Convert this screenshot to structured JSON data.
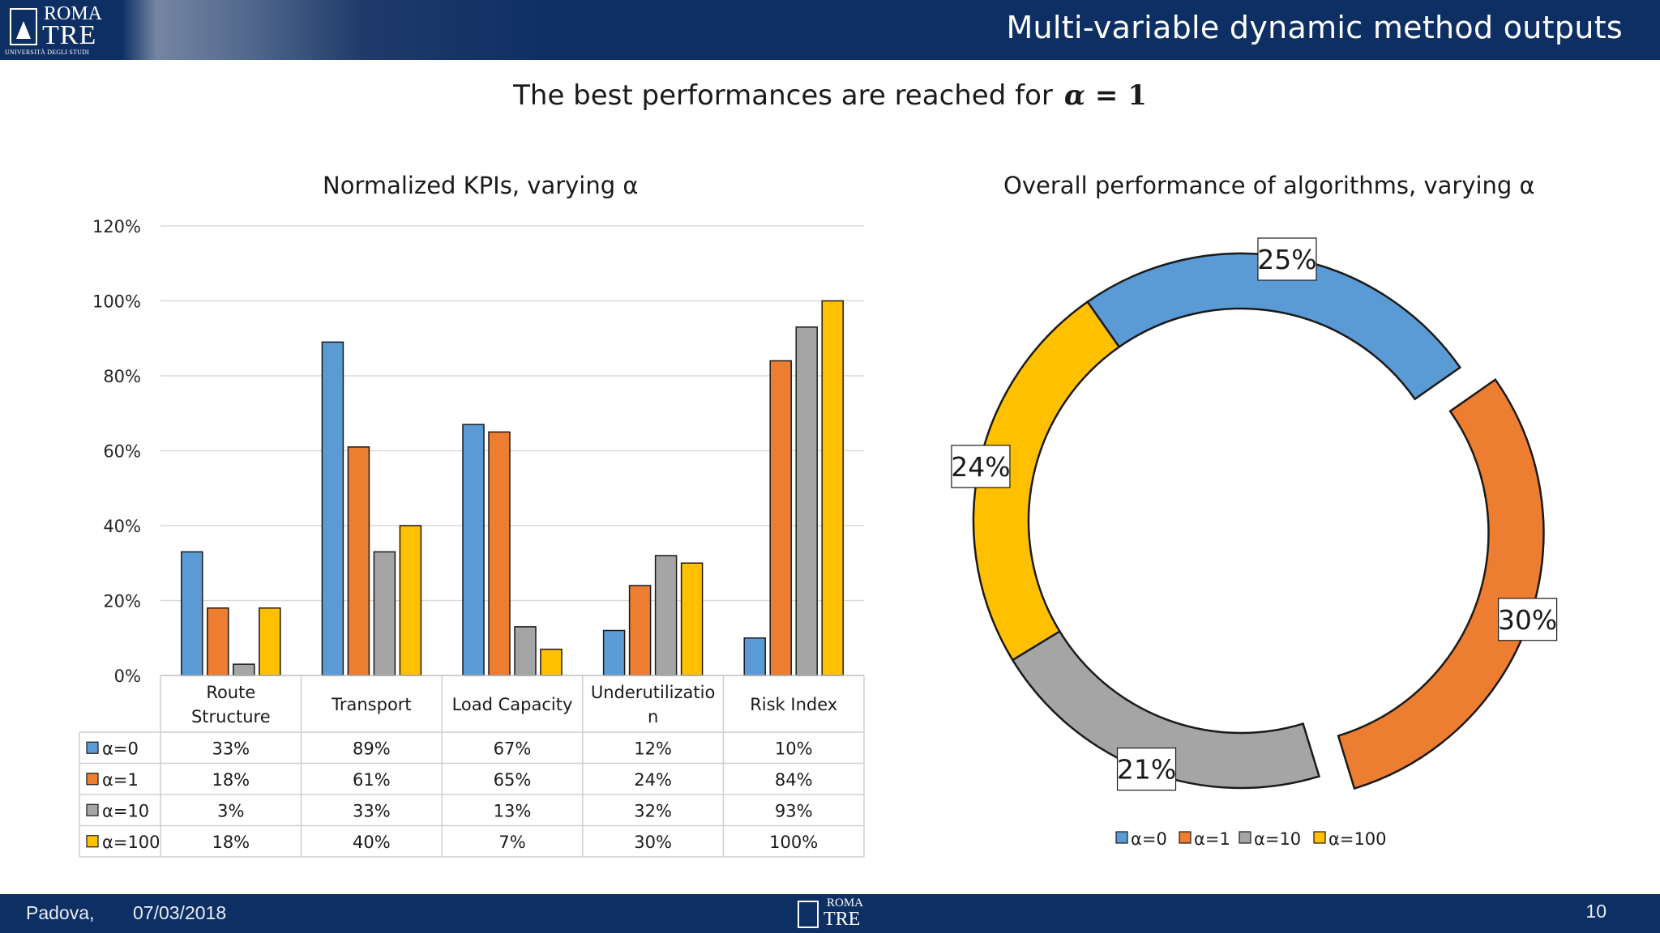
{
  "header": {
    "title": "Multi-variable dynamic method outputs",
    "logo_top": "ROMA",
    "logo_main": "TRE",
    "logo_sub": "UNIVERSITÀ DEGLI STUDI"
  },
  "subtitle": {
    "text": "The best performances are reached for",
    "math_alpha": "α",
    "math_eq": " = 1"
  },
  "colors": {
    "alpha0": "#5b9bd5",
    "alpha1": "#ed7d31",
    "alpha10": "#a5a5a5",
    "alpha100": "#ffc000",
    "header_bg": "#0e2f63"
  },
  "chart_data": [
    {
      "type": "bar",
      "title": "Normalized KPIs, varying α",
      "categories": [
        "Route Structure",
        "Transport",
        "Load Capacity",
        "Underutilization",
        "Risk Index"
      ],
      "category_lines": [
        [
          "Route",
          "Structure"
        ],
        [
          "Transport"
        ],
        [
          "Load Capacity"
        ],
        [
          "Underutilizatio",
          "n"
        ],
        [
          "Risk Index"
        ]
      ],
      "series": [
        {
          "name": "α=0",
          "values": [
            33,
            89,
            67,
            12,
            10
          ],
          "labels": [
            "33%",
            "89%",
            "67%",
            "12%",
            "10%"
          ],
          "color": "#5b9bd5"
        },
        {
          "name": "α=1",
          "values": [
            18,
            61,
            65,
            24,
            84
          ],
          "labels": [
            "18%",
            "61%",
            "65%",
            "24%",
            "84%"
          ],
          "color": "#ed7d31"
        },
        {
          "name": "α=10",
          "values": [
            3,
            33,
            13,
            32,
            93
          ],
          "labels": [
            "3%",
            "33%",
            "13%",
            "32%",
            "93%"
          ],
          "color": "#a5a5a5"
        },
        {
          "name": "α=100",
          "values": [
            18,
            40,
            7,
            30,
            100
          ],
          "labels": [
            "18%",
            "40%",
            "7%",
            "30%",
            "100%"
          ],
          "color": "#ffc000"
        }
      ],
      "ylim": [
        0,
        120
      ],
      "yticks": [
        "0%",
        "20%",
        "40%",
        "60%",
        "80%",
        "100%",
        "120%"
      ],
      "grid": true,
      "legend": "data-table"
    },
    {
      "type": "pie",
      "variant": "donut",
      "title": "Overall performance of algorithms, varying α",
      "labels": [
        "α=0",
        "α=1",
        "α=10",
        "α=100"
      ],
      "values": [
        25,
        30,
        21,
        24
      ],
      "value_labels": [
        "25%",
        "30%",
        "21%",
        "24%"
      ],
      "colors": [
        "#5b9bd5",
        "#ed7d31",
        "#a5a5a5",
        "#ffc000"
      ],
      "legend": "bottom"
    }
  ],
  "footer": {
    "city": "Padova,",
    "date": "07/03/2018",
    "page": "10",
    "logo_top": "ROMA",
    "logo_main": "TRE"
  }
}
